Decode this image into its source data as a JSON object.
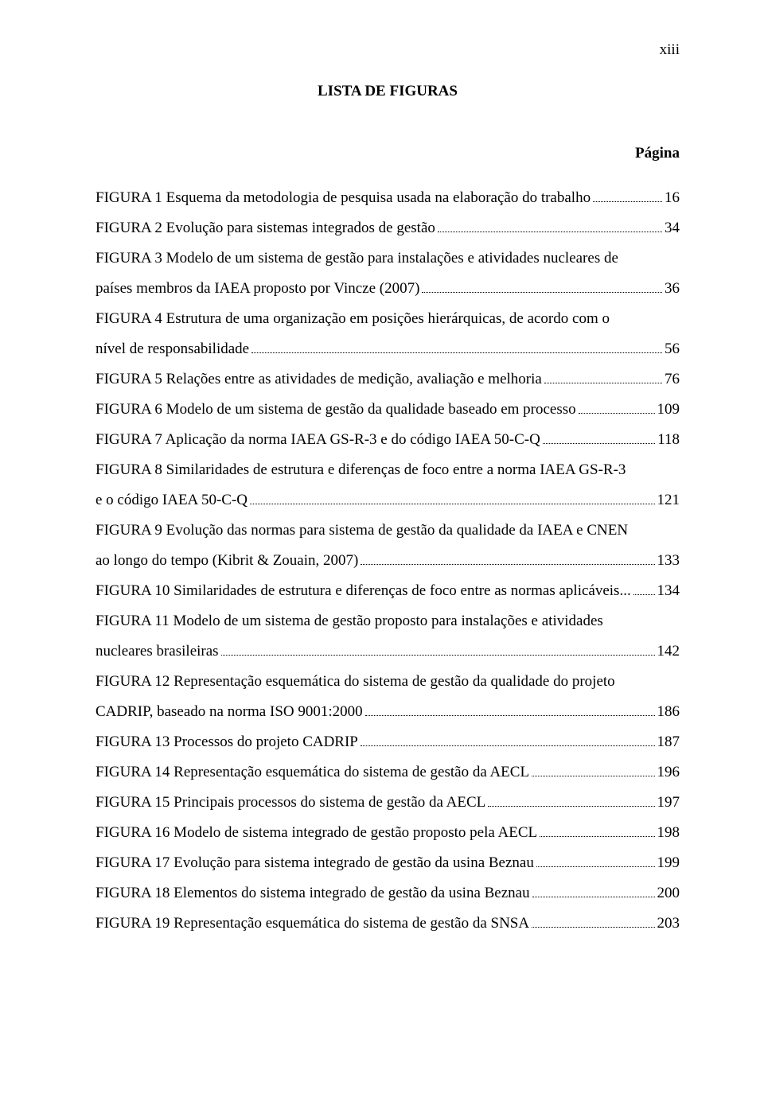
{
  "page_number": "xiii",
  "heading": "LISTA DE FIGURAS",
  "subheading": "Página",
  "font": {
    "family": "Times New Roman",
    "body_size_pt": 14,
    "line_height": 2.0,
    "color": "#000000",
    "background": "#ffffff"
  },
  "entries": [
    {
      "pre": "FIGURA 1 Esquema da metodologia de pesquisa usada na elaboração do trabalho",
      "tail": "",
      "page": "16"
    },
    {
      "pre": "FIGURA 2 Evolução para sistemas integrados de gestão",
      "tail": "",
      "page": "34"
    },
    {
      "pre": "FIGURA 3 Modelo de um sistema de gestão para instalações e atividades nucleares de",
      "tail": "países membros da IAEA proposto por Vincze (2007)",
      "page": "36"
    },
    {
      "pre": "FIGURA 4 Estrutura de uma organização em posições hierárquicas, de acordo com o",
      "tail": "nível de responsabilidade",
      "page": "56"
    },
    {
      "pre": "FIGURA 5 Relações entre as atividades de medição, avaliação e melhoria",
      "tail": "",
      "page": "76"
    },
    {
      "pre": "FIGURA 6 Modelo de um sistema de gestão da qualidade baseado em processo",
      "tail": "",
      "page": "109"
    },
    {
      "pre": "FIGURA 7 Aplicação da norma IAEA GS-R-3 e do código IAEA 50-C-Q",
      "tail": "",
      "page": "118"
    },
    {
      "pre": "FIGURA 8 Similaridades de estrutura e diferenças de foco entre a norma IAEA GS-R-3",
      "tail": "e o código IAEA 50-C-Q",
      "page": "121"
    },
    {
      "pre": "FIGURA 9 Evolução das normas para sistema de gestão da qualidade da IAEA e CNEN",
      "tail": "ao longo do tempo (Kibrit & Zouain, 2007)",
      "page": "133"
    },
    {
      "pre": "FIGURA 10 Similaridades de estrutura e diferenças de foco entre as normas aplicáveis...",
      "tail": "",
      "page": "134"
    },
    {
      "pre": "FIGURA 11 Modelo de um sistema de gestão proposto para instalações e atividades",
      "tail": "nucleares brasileiras",
      "page": "142"
    },
    {
      "pre": "FIGURA 12 Representação esquemática do sistema de gestão da qualidade do projeto",
      "tail": "CADRIP, baseado na norma ISO 9001:2000",
      "page": "186"
    },
    {
      "pre": "FIGURA 13 Processos do projeto CADRIP",
      "tail": "",
      "page": "187"
    },
    {
      "pre": "FIGURA 14 Representação esquemática do sistema de gestão da AECL",
      "tail": "",
      "page": "196"
    },
    {
      "pre": "FIGURA 15 Principais processos do sistema de gestão da AECL",
      "tail": "",
      "page": "197"
    },
    {
      "pre": "FIGURA 16 Modelo de sistema integrado de gestão proposto pela AECL",
      "tail": "",
      "page": "198"
    },
    {
      "pre": "FIGURA 17 Evolução para sistema integrado de gestão da usina Beznau",
      "tail": "",
      "page": "199"
    },
    {
      "pre": "FIGURA 18 Elementos do sistema integrado de gestão da usina Beznau",
      "tail": "",
      "page": "200"
    },
    {
      "pre": "FIGURA 19 Representação esquemática do sistema de gestão da SNSA",
      "tail": "",
      "page": "203"
    }
  ]
}
